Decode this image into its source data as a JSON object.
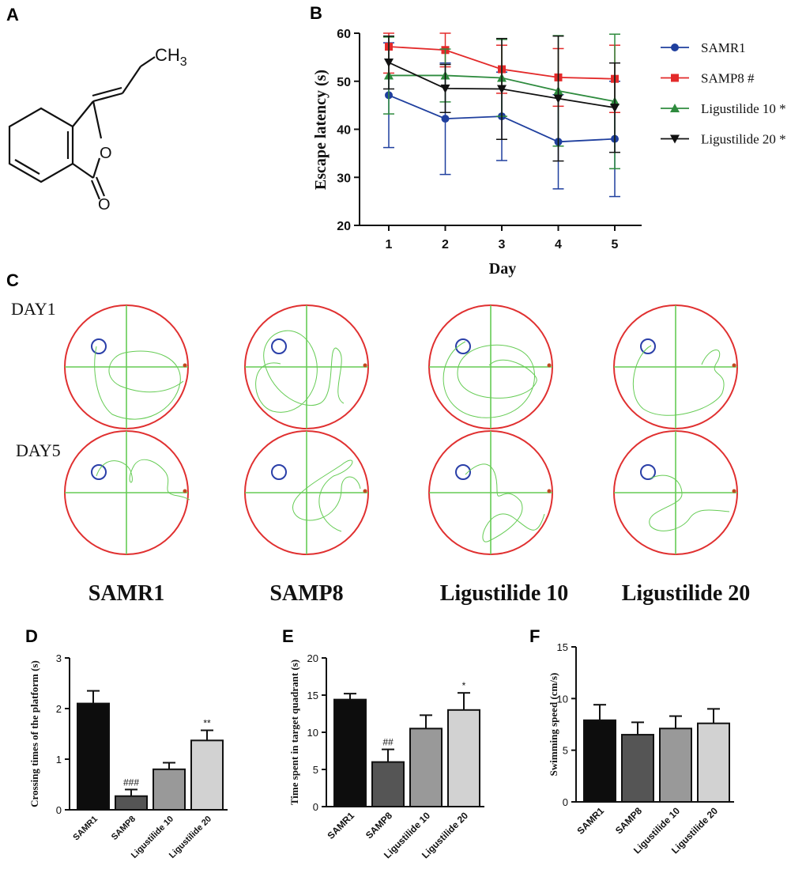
{
  "panels": {
    "A": "A",
    "B": "B",
    "C": "C",
    "D": "D",
    "E": "E",
    "F": "F"
  },
  "structure": {
    "ch3": "CH3",
    "atoms": [
      "O",
      "O"
    ]
  },
  "colors": {
    "samr1": "#1f3f9e",
    "samp8": "#e32a2a",
    "lig10": "#2e8b3e",
    "lig20": "#111111",
    "arena": "#e03030",
    "track": "#66cc55",
    "bars": [
      "#0d0d0d",
      "#555555",
      "#999999",
      "#d2d2d2"
    ]
  },
  "chart_data": [
    {
      "id": "B",
      "type": "line",
      "title": "",
      "xlabel": "Day",
      "ylabel": "Escape latency (s)",
      "x": [
        1,
        2,
        3,
        4,
        5
      ],
      "ylim": [
        20,
        60
      ],
      "yticks": [
        20,
        30,
        40,
        50,
        60
      ],
      "series": [
        {
          "name": "SAMR1",
          "marker": "circle",
          "color": "#1f3f9e",
          "values": [
            47.1,
            42.2,
            42.7,
            37.4,
            38.0
          ],
          "errors": [
            10.9,
            11.6,
            9.2,
            9.8,
            12.0
          ]
        },
        {
          "name": "SAMP8 #",
          "marker": "square",
          "color": "#e32a2a",
          "values": [
            57.2,
            56.5,
            52.5,
            50.8,
            50.5
          ],
          "errors": [
            5.5,
            3.5,
            5.0,
            6.0,
            7.0
          ]
        },
        {
          "name": "Ligustilide 10 *",
          "marker": "triangle-up",
          "color": "#2e8b3e",
          "values": [
            51.2,
            51.2,
            50.7,
            48.0,
            45.8
          ],
          "errors": [
            8.0,
            5.5,
            8.0,
            11.5,
            14.0
          ]
        },
        {
          "name": "Ligustilide 20 *",
          "marker": "triangle-down",
          "color": "#111111",
          "values": [
            53.9,
            48.5,
            48.4,
            46.4,
            44.5
          ],
          "errors": [
            5.5,
            5.0,
            10.5,
            13.0,
            9.3
          ]
        }
      ]
    },
    {
      "id": "D",
      "type": "bar",
      "ylabel": "Crossing times of the platform (s)",
      "categories": [
        "SAMR1",
        "SAMP8",
        "Ligustilide 10",
        "Ligustilide 20"
      ],
      "values": [
        2.1,
        0.27,
        0.8,
        1.37
      ],
      "errors": [
        0.25,
        0.13,
        0.13,
        0.2
      ],
      "annotations": [
        "",
        "###",
        "",
        "**"
      ],
      "ylim": [
        0,
        3
      ],
      "yticks": [
        0,
        1,
        2,
        3
      ]
    },
    {
      "id": "E",
      "type": "bar",
      "ylabel": "Time spent in target quadrant (s)",
      "categories": [
        "SAMR1",
        "SAMP8",
        "Ligustilide 10",
        "Ligustilide 20"
      ],
      "values": [
        14.4,
        6.0,
        10.5,
        13.0
      ],
      "errors": [
        0.8,
        1.7,
        1.8,
        2.3
      ],
      "annotations": [
        "",
        "##",
        "",
        "*"
      ],
      "ylim": [
        0,
        20
      ],
      "yticks": [
        0,
        5,
        10,
        15,
        20
      ]
    },
    {
      "id": "F",
      "type": "bar",
      "ylabel": "Swimming speed (cm/s)",
      "categories": [
        "SAMR1",
        "SAMP8",
        "Ligustilide 10",
        "Ligustilide 20"
      ],
      "values": [
        7.9,
        6.5,
        7.1,
        7.6
      ],
      "errors": [
        1.5,
        1.2,
        1.2,
        1.4
      ],
      "annotations": [
        "",
        "",
        "",
        ""
      ],
      "ylim": [
        0,
        15
      ],
      "yticks": [
        0,
        5,
        10,
        15
      ]
    }
  ],
  "tracking": {
    "day_labels": [
      "DAY1",
      "DAY5"
    ],
    "groups": [
      "SAMR1",
      "SAMP8",
      "Ligustilide 10",
      "Ligustilide 20"
    ]
  }
}
